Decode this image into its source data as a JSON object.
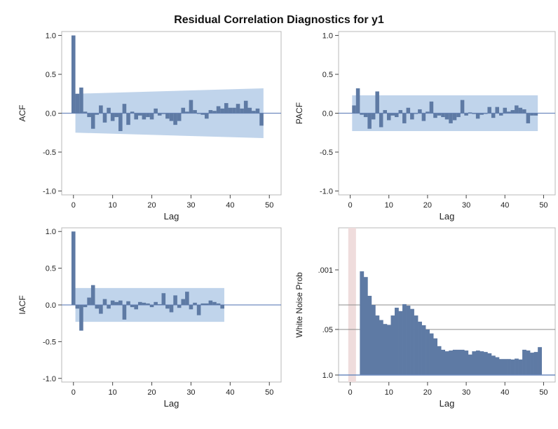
{
  "title": "Residual Correlation Diagnostics for y1",
  "colors": {
    "bar": "#5e7aa4",
    "band": "#b9cfe9",
    "refline": "#6f8bbf",
    "frame": "#b8b8b8",
    "pink": "#efdcdc",
    "grid": "#8c8c8c"
  },
  "chart_data": [
    {
      "type": "bar",
      "ylabel": "ACF",
      "xlabel": "Lag",
      "xlim": [
        -3,
        53
      ],
      "ylim": [
        -1.05,
        1.05
      ],
      "x_ticks": [
        "0",
        "10",
        "20",
        "30",
        "40",
        "50"
      ],
      "y_ticks": [
        "1.0",
        "0.5",
        "0.0",
        "-0.5",
        "-1.0"
      ],
      "lags": [
        0,
        1,
        2,
        3,
        4,
        5,
        6,
        7,
        8,
        9,
        10,
        11,
        12,
        13,
        14,
        15,
        16,
        17,
        18,
        19,
        20,
        21,
        22,
        23,
        24,
        25,
        26,
        27,
        28,
        29,
        30,
        31,
        32,
        33,
        34,
        35,
        36,
        37,
        38,
        39,
        40,
        41,
        42,
        43,
        44,
        45,
        46,
        47,
        48
      ],
      "values": [
        1.0,
        0.25,
        0.33,
        0.02,
        -0.05,
        -0.2,
        -0.02,
        0.1,
        -0.12,
        0.07,
        -0.1,
        -0.05,
        -0.23,
        0.12,
        -0.15,
        0.02,
        -0.08,
        -0.03,
        -0.08,
        -0.05,
        -0.08,
        0.06,
        -0.03,
        -0.01,
        -0.07,
        -0.1,
        -0.15,
        -0.1,
        0.07,
        0.02,
        0.17,
        0.04,
        0.0,
        -0.02,
        -0.07,
        0.04,
        0.03,
        0.09,
        0.06,
        0.13,
        0.07,
        0.07,
        0.12,
        0.06,
        0.16,
        0.07,
        0.03,
        0.06,
        -0.16
      ],
      "band": {
        "lags": [
          1,
          48
        ],
        "upper": [
          0.25,
          0.32
        ],
        "lower": [
          -0.25,
          -0.32
        ]
      }
    },
    {
      "type": "bar",
      "ylabel": "PACF",
      "xlabel": "Lag",
      "xlim": [
        -3,
        53
      ],
      "ylim": [
        -1.05,
        1.05
      ],
      "x_ticks": [
        "0",
        "10",
        "20",
        "30",
        "40",
        "50"
      ],
      "y_ticks": [
        "1.0",
        "0.5",
        "0.0",
        "-0.5",
        "-1.0"
      ],
      "lags": [
        1,
        2,
        3,
        4,
        5,
        6,
        7,
        8,
        9,
        10,
        11,
        12,
        13,
        14,
        15,
        16,
        17,
        18,
        19,
        20,
        21,
        22,
        23,
        24,
        25,
        26,
        27,
        28,
        29,
        30,
        31,
        32,
        33,
        34,
        35,
        36,
        37,
        38,
        39,
        40,
        41,
        42,
        43,
        44,
        45,
        46,
        47,
        48
      ],
      "values": [
        0.1,
        0.32,
        -0.02,
        -0.05,
        -0.2,
        -0.08,
        0.28,
        -0.18,
        0.04,
        -0.09,
        -0.03,
        -0.05,
        0.04,
        -0.13,
        0.07,
        -0.08,
        0.0,
        0.05,
        -0.1,
        0.02,
        0.15,
        -0.06,
        -0.03,
        -0.05,
        -0.08,
        -0.13,
        -0.09,
        -0.05,
        0.17,
        -0.03,
        0.01,
        -0.01,
        -0.07,
        -0.02,
        0.0,
        0.08,
        -0.06,
        0.08,
        -0.03,
        0.07,
        0.02,
        0.04,
        0.1,
        0.07,
        0.05,
        -0.13,
        -0.03,
        -0.03
      ],
      "band": {
        "lags": [
          1,
          48
        ],
        "upper": [
          0.23,
          0.23
        ],
        "lower": [
          -0.23,
          -0.23
        ]
      }
    },
    {
      "type": "bar",
      "ylabel": "IACF",
      "xlabel": "Lag",
      "xlim": [
        -3,
        53
      ],
      "ylim": [
        -1.05,
        1.05
      ],
      "x_ticks": [
        "0",
        "10",
        "20",
        "30",
        "40",
        "50"
      ],
      "y_ticks": [
        "1.0",
        "0.5",
        "0.0",
        "-0.5",
        "-1.0"
      ],
      "lags": [
        0,
        1,
        2,
        3,
        4,
        5,
        6,
        7,
        8,
        9,
        10,
        11,
        12,
        13,
        14,
        15,
        16,
        17,
        18,
        19,
        20,
        21,
        22,
        23,
        24,
        25,
        26,
        27,
        28,
        29,
        30,
        31,
        32,
        33,
        34,
        35,
        36,
        37,
        38
      ],
      "values": [
        1.0,
        -0.05,
        -0.35,
        -0.03,
        0.1,
        0.27,
        -0.05,
        -0.12,
        0.08,
        -0.05,
        0.06,
        0.04,
        0.06,
        -0.2,
        0.05,
        -0.03,
        -0.06,
        0.04,
        0.03,
        0.02,
        -0.03,
        0.04,
        0.01,
        0.16,
        -0.05,
        -0.1,
        0.13,
        -0.04,
        0.08,
        0.18,
        -0.06,
        0.03,
        -0.14,
        0.02,
        0.02,
        0.06,
        0.04,
        0.02,
        -0.05
      ],
      "band": {
        "lags": [
          1,
          38
        ],
        "upper": [
          0.23,
          0.23
        ],
        "lower": [
          -0.23,
          -0.23
        ]
      }
    },
    {
      "type": "bar",
      "ylabel": "White Noise Prob",
      "xlabel": "Lag",
      "xlim": [
        -3,
        53
      ],
      "y_scale": "log",
      "ylim": [
        1.0,
        0.0001
      ],
      "x_ticks": [
        "0",
        "10",
        "20",
        "30",
        "40",
        "50"
      ],
      "y_ticks": [
        {
          "label": ".001",
          "value": 0.001
        },
        {
          "label": ".05",
          "value": 0.05
        },
        {
          "label": "1.0",
          "value": 1.0
        }
      ],
      "ref_lines": [
        0.01,
        0.05
      ],
      "highlight_lags": [
        0,
        1
      ],
      "lags": [
        3,
        4,
        5,
        6,
        7,
        8,
        9,
        10,
        11,
        12,
        13,
        14,
        15,
        16,
        17,
        18,
        19,
        20,
        21,
        22,
        23,
        24,
        25,
        26,
        27,
        28,
        29,
        30,
        31,
        32,
        33,
        34,
        35,
        36,
        37,
        38,
        39,
        40,
        41,
        42,
        43,
        44,
        45,
        46,
        47,
        48,
        49
      ],
      "values": [
        0.0011,
        0.0016,
        0.0055,
        0.01,
        0.02,
        0.027,
        0.035,
        0.037,
        0.02,
        0.012,
        0.015,
        0.0095,
        0.0105,
        0.013,
        0.02,
        0.03,
        0.038,
        0.05,
        0.065,
        0.09,
        0.15,
        0.19,
        0.21,
        0.2,
        0.19,
        0.19,
        0.19,
        0.2,
        0.26,
        0.21,
        0.2,
        0.21,
        0.22,
        0.24,
        0.28,
        0.31,
        0.35,
        0.35,
        0.35,
        0.36,
        0.34,
        0.36,
        0.19,
        0.2,
        0.23,
        0.22,
        0.16
      ]
    }
  ]
}
